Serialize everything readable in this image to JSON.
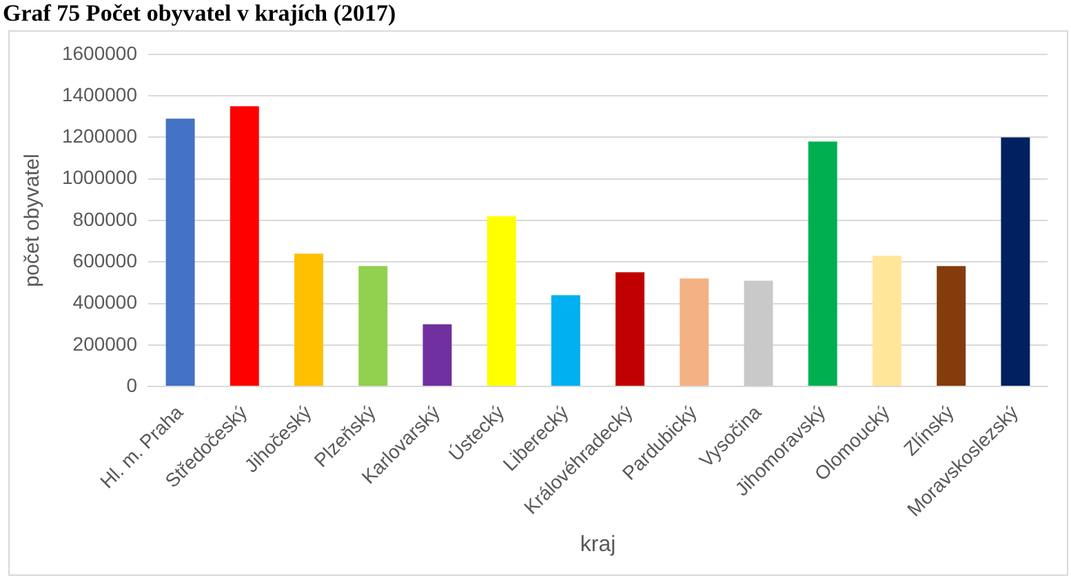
{
  "chart_data": {
    "type": "bar",
    "title": "Graf 75 Počet obyvatel v krajích (2017)",
    "xlabel": "kraj",
    "ylabel": "počet obyvatel",
    "categories": [
      "Hl. m. Praha",
      "Středočeský",
      "Jihočeský",
      "Plzeňský",
      "Karlovarský",
      "Ústecký",
      "Liberecký",
      "Královéhradecký",
      "Pardubický",
      "Vysočina",
      "Jihomoravský",
      "Olomoucký",
      "Zlínský",
      "Moravskoslezský"
    ],
    "values": [
      1290000,
      1350000,
      640000,
      580000,
      300000,
      820000,
      440000,
      550000,
      520000,
      510000,
      1180000,
      630000,
      580000,
      1200000
    ],
    "colors": [
      "#4472c4",
      "#ff0000",
      "#ffc000",
      "#92d050",
      "#7030a0",
      "#ffff00",
      "#00b0f0",
      "#c00000",
      "#f4b183",
      "#c9c9c9",
      "#00b050",
      "#ffe699",
      "#843c0c",
      "#002060"
    ],
    "ylim": [
      0,
      1600000
    ],
    "yticks": [
      0,
      200000,
      400000,
      600000,
      800000,
      1000000,
      1200000,
      1400000,
      1600000
    ],
    "grid": "y",
    "legend": false
  }
}
